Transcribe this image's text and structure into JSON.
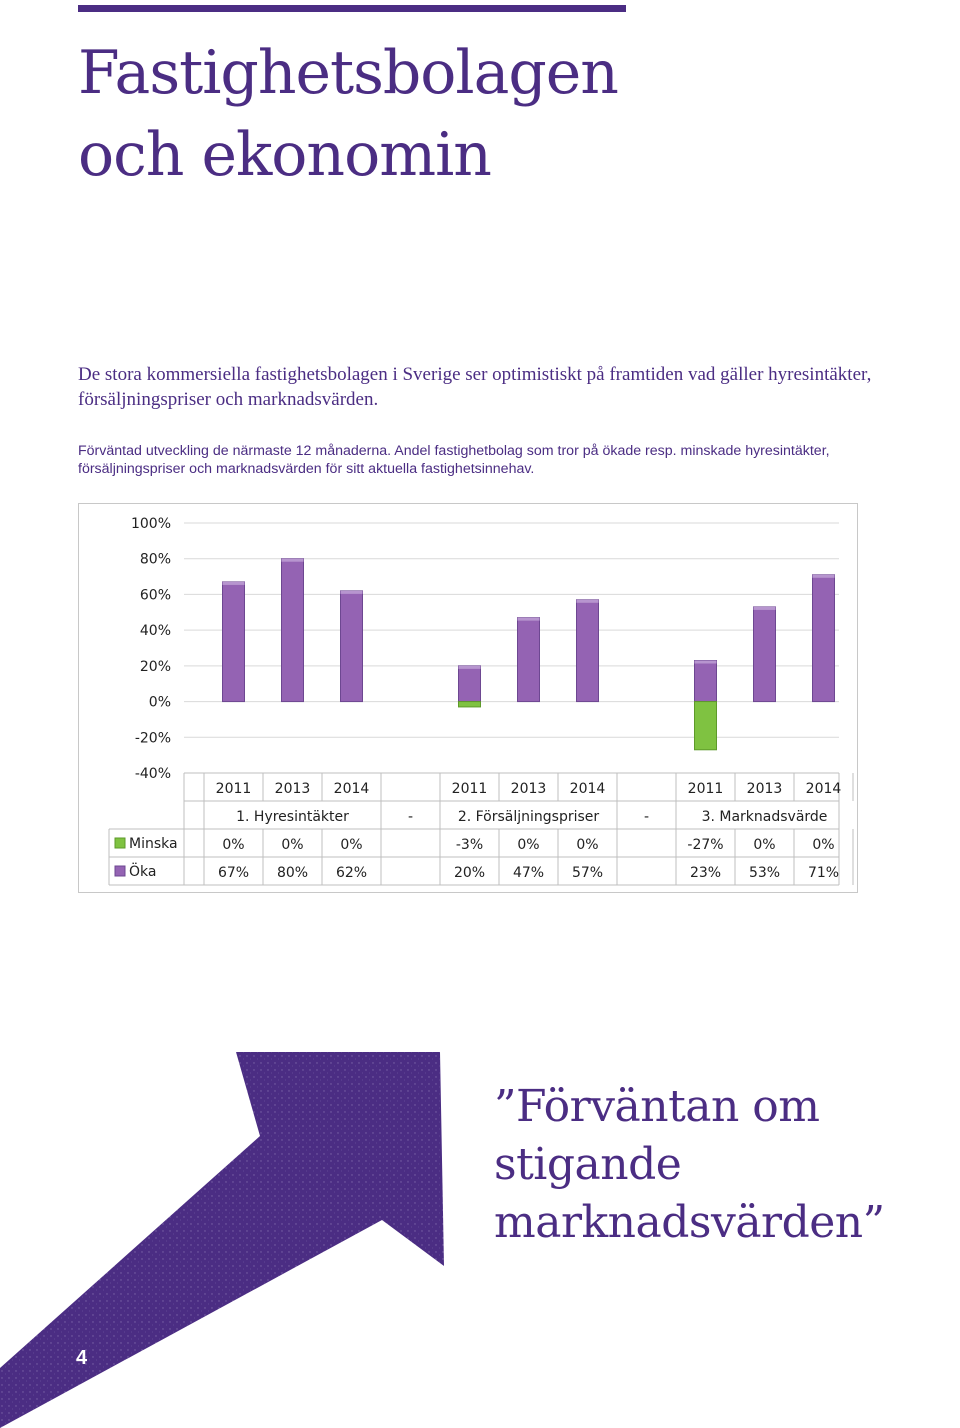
{
  "page": {
    "title_line1": "Fastighetsbolagen",
    "title_line2": "och ekonomin",
    "intro": "De stora kommersiella fastighetsbolagen i Sverige ser optimistiskt på framtiden vad gäller hyresintäkter, försäljningspriser och marknadsvärden.",
    "caption_line1": "Förväntad utveckling de närmaste 12 månaderna. Andel fastighetbolag som tror på ökade resp. minskade hyresintäkter,",
    "caption_line2": "försäljningspriser och marknadsvärden för sitt aktuella fastighetsinnehav.",
    "quote_line1": "”Förväntan om stigande",
    "quote_line2": "marknadsvärden”",
    "page_number": "4",
    "accent_color": "#4b2d83"
  },
  "chart_data": {
    "type": "bar",
    "ylim": [
      -40,
      100
    ],
    "y_ticks": [
      "100%",
      "80%",
      "60%",
      "40%",
      "20%",
      "0%",
      "-20%",
      "-40%"
    ],
    "y_tick_values": [
      100,
      80,
      60,
      40,
      20,
      0,
      -20,
      -40
    ],
    "grid": true,
    "groups": [
      "1. Hyresintäkter",
      "-",
      "2. Försäljningspriser",
      "-",
      "3. Marknadsvärde"
    ],
    "categories": [
      "2011",
      "2013",
      "2014",
      "2011",
      "2013",
      "2014",
      "2011",
      "2013",
      "2014"
    ],
    "category_groups": [
      0,
      0,
      0,
      2,
      2,
      2,
      4,
      4,
      4
    ],
    "series": [
      {
        "name": "Minska",
        "color": "#7fc241",
        "values": [
          0,
          0,
          0,
          -3,
          0,
          0,
          -27,
          0,
          0
        ],
        "labels": [
          "0%",
          "0%",
          "0%",
          "-3%",
          "0%",
          "0%",
          "-27%",
          "0%",
          "0%"
        ]
      },
      {
        "name": "Öka",
        "color": "#9463b3",
        "values": [
          67,
          80,
          62,
          20,
          47,
          57,
          23,
          53,
          71
        ],
        "labels": [
          "67%",
          "80%",
          "62%",
          "20%",
          "47%",
          "57%",
          "23%",
          "53%",
          "71%"
        ]
      }
    ]
  }
}
